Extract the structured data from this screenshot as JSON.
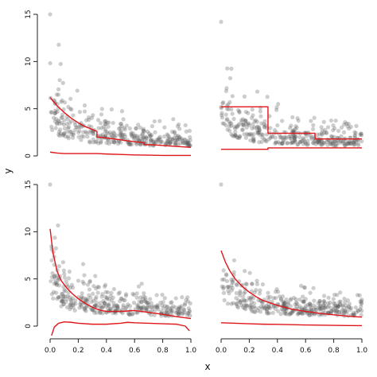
{
  "colors": {
    "points": "#5a5a5a",
    "band": "#e0161b",
    "axis": "#222222",
    "background": "#ffffff"
  },
  "axis_titles": {
    "x": "x",
    "y": "y"
  },
  "chart_data": [
    {
      "id": "top-left",
      "type": "scatter",
      "xlabel": "",
      "ylabel": "",
      "xlim": [
        0,
        1
      ],
      "ylim": [
        0,
        15
      ],
      "y_ticks": [
        0,
        5,
        10,
        15
      ],
      "x_ticks": [],
      "seed": 11,
      "bands": [
        {
          "name": "",
          "points": [
            [
              0,
              6.2
            ],
            [
              0.05,
              5.3
            ],
            [
              0.1,
              4.6
            ],
            [
              0.15,
              4.0
            ],
            [
              0.2,
              3.5
            ],
            [
              0.25,
              3.1
            ],
            [
              0.3,
              2.8
            ],
            [
              0.333,
              2.6
            ],
            [
              0.333,
              2.0
            ],
            [
              0.4,
              1.9
            ],
            [
              0.5,
              1.7
            ],
            [
              0.6,
              1.5
            ],
            [
              0.667,
              1.4
            ],
            [
              0.667,
              1.2
            ],
            [
              0.75,
              1.15
            ],
            [
              0.85,
              1.05
            ],
            [
              0.95,
              0.95
            ],
            [
              1.0,
              0.9
            ]
          ]
        },
        {
          "name": "",
          "points": [
            [
              0,
              0.4
            ],
            [
              0.05,
              0.3
            ],
            [
              0.1,
              0.25
            ],
            [
              0.2,
              0.25
            ],
            [
              0.333,
              0.25
            ],
            [
              0.4,
              0.2
            ],
            [
              0.5,
              0.15
            ],
            [
              0.6,
              0.1
            ],
            [
              0.7,
              0.08
            ],
            [
              0.8,
              0.05
            ],
            [
              0.9,
              0.05
            ],
            [
              1.0,
              0.05
            ]
          ]
        }
      ]
    },
    {
      "id": "top-right",
      "type": "scatter",
      "xlabel": "",
      "ylabel": "",
      "xlim": [
        0,
        1
      ],
      "ylim": [
        0,
        15
      ],
      "y_ticks": [],
      "x_ticks": [],
      "seed": 23,
      "bands": [
        {
          "name": "",
          "points": [
            [
              0,
              5.2
            ],
            [
              0.333,
              5.2
            ],
            [
              0.333,
              2.4
            ],
            [
              0.667,
              2.4
            ],
            [
              0.667,
              1.8
            ],
            [
              1.0,
              1.8
            ]
          ]
        },
        {
          "name": "",
          "points": [
            [
              0,
              0.7
            ],
            [
              0.333,
              0.7
            ],
            [
              0.333,
              0.85
            ],
            [
              0.667,
              0.85
            ],
            [
              0.667,
              0.85
            ],
            [
              1.0,
              0.85
            ]
          ]
        }
      ]
    },
    {
      "id": "bottom-left",
      "type": "scatter",
      "xlabel": "",
      "ylabel": "",
      "xlim": [
        0,
        1
      ],
      "ylim": [
        0,
        15
      ],
      "y_ticks": [
        0,
        5,
        10,
        15
      ],
      "x_ticks": [
        0.0,
        0.2,
        0.4,
        0.6,
        0.8,
        1.0
      ],
      "seed": 37,
      "bands": [
        {
          "name": "",
          "points": [
            [
              0,
              10.3
            ],
            [
              0.02,
              7.8
            ],
            [
              0.05,
              5.8
            ],
            [
              0.08,
              4.8
            ],
            [
              0.12,
              4.0
            ],
            [
              0.16,
              3.4
            ],
            [
              0.2,
              2.9
            ],
            [
              0.25,
              2.4
            ],
            [
              0.3,
              2.0
            ],
            [
              0.35,
              1.7
            ],
            [
              0.4,
              1.55
            ],
            [
              0.5,
              1.55
            ],
            [
              0.55,
              1.6
            ],
            [
              0.6,
              1.65
            ],
            [
              0.65,
              1.55
            ],
            [
              0.7,
              1.45
            ],
            [
              0.8,
              1.25
            ],
            [
              0.9,
              1.0
            ],
            [
              0.95,
              0.9
            ],
            [
              1.0,
              0.8
            ]
          ]
        },
        {
          "name": "",
          "points": [
            [
              0.01,
              -1.0
            ],
            [
              0.03,
              -0.1
            ],
            [
              0.06,
              0.3
            ],
            [
              0.1,
              0.45
            ],
            [
              0.15,
              0.4
            ],
            [
              0.2,
              0.3
            ],
            [
              0.3,
              0.2
            ],
            [
              0.4,
              0.2
            ],
            [
              0.5,
              0.3
            ],
            [
              0.55,
              0.4
            ],
            [
              0.6,
              0.35
            ],
            [
              0.7,
              0.3
            ],
            [
              0.8,
              0.25
            ],
            [
              0.9,
              0.2
            ],
            [
              0.96,
              0.0
            ],
            [
              0.99,
              -0.5
            ]
          ]
        }
      ]
    },
    {
      "id": "bottom-right",
      "type": "scatter",
      "xlabel": "",
      "ylabel": "",
      "xlim": [
        0,
        1
      ],
      "ylim": [
        0,
        15
      ],
      "y_ticks": [],
      "x_ticks": [
        0.0,
        0.2,
        0.4,
        0.6,
        0.8,
        1.0
      ],
      "seed": 53,
      "bands": [
        {
          "name": "",
          "points": [
            [
              0,
              8.0
            ],
            [
              0.03,
              6.8
            ],
            [
              0.06,
              5.9
            ],
            [
              0.1,
              5.0
            ],
            [
              0.15,
              4.2
            ],
            [
              0.2,
              3.6
            ],
            [
              0.25,
              3.1
            ],
            [
              0.3,
              2.7
            ],
            [
              0.4,
              2.2
            ],
            [
              0.5,
              1.8
            ],
            [
              0.6,
              1.55
            ],
            [
              0.7,
              1.35
            ],
            [
              0.8,
              1.2
            ],
            [
              0.9,
              1.05
            ],
            [
              1.0,
              0.95
            ]
          ]
        },
        {
          "name": "",
          "points": [
            [
              0,
              0.35
            ],
            [
              0.1,
              0.3
            ],
            [
              0.2,
              0.25
            ],
            [
              0.3,
              0.2
            ],
            [
              0.4,
              0.18
            ],
            [
              0.5,
              0.15
            ],
            [
              0.6,
              0.12
            ],
            [
              0.7,
              0.1
            ],
            [
              0.8,
              0.08
            ],
            [
              0.9,
              0.06
            ],
            [
              1.0,
              0.05
            ]
          ]
        }
      ]
    }
  ]
}
